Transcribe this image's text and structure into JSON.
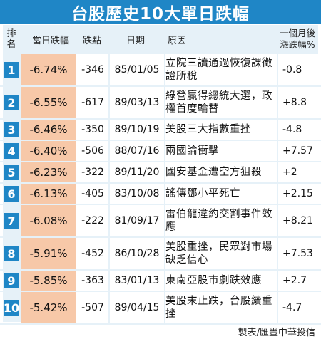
{
  "title": "台股歷史10大單日跌幅",
  "headers": {
    "rank_line1": "排",
    "rank_line2": "名",
    "pct": "當日跌幅",
    "points": "跌點",
    "date": "日期",
    "reason": "原因",
    "month_line1": "一個月後",
    "month_line2": "漲跌幅%"
  },
  "rows": [
    {
      "rank": "1",
      "pct": "-6.74%",
      "points": "-346",
      "date": "85/01/05",
      "reason": "立院三讀通過恢復課徵證所稅",
      "month": "-0.8",
      "tall": true
    },
    {
      "rank": "2",
      "pct": "-6.55%",
      "points": "-617",
      "date": "89/03/13",
      "reason": "綠營贏得總統大選，政權首度輪替",
      "month": "+8.8",
      "tall": true
    },
    {
      "rank": "3",
      "pct": "-6.46%",
      "points": "-350",
      "date": "89/10/19",
      "reason": "美股三大指數重挫",
      "month": "-4.8",
      "tall": false
    },
    {
      "rank": "4",
      "pct": "-6.40%",
      "points": "-506",
      "date": "88/07/16",
      "reason": "兩國論衝擊",
      "month": "+7.57",
      "tall": false
    },
    {
      "rank": "5",
      "pct": "-6.23%",
      "points": "-322",
      "date": "89/11/20",
      "reason": "國安基金遭空方狙殺",
      "month": "+2",
      "tall": false
    },
    {
      "rank": "6",
      "pct": "-6.13%",
      "points": "-405",
      "date": "83/10/08",
      "reason": "謠傳鄧小平死亡",
      "month": "+2.15",
      "tall": false
    },
    {
      "rank": "7",
      "pct": "-6.08%",
      "points": "-222",
      "date": "81/09/17",
      "reason": "雷伯龍違約交割事件效應",
      "month": "+8.21",
      "tall": true
    },
    {
      "rank": "8",
      "pct": "-5.91%",
      "points": "-452",
      "date": "86/10/28",
      "reason": "美股重挫，民眾對市場缺乏信心",
      "month": "+7.53",
      "tall": true
    },
    {
      "rank": "9",
      "pct": "-5.85%",
      "points": "-363",
      "date": "83/01/13",
      "reason": "東南亞股市劇跌效應",
      "month": "+2.7",
      "tall": false
    },
    {
      "rank": "10",
      "pct": "-5.42%",
      "points": "-507",
      "date": "89/04/15",
      "reason": "美股末止跌，台股續重挫",
      "month": "-4.7",
      "tall": true
    }
  ],
  "footer": "製表/匯豐中華投信",
  "colors": {
    "accent": "#1f86c6",
    "pct_bg": "#f7c8a8",
    "panel_bg": "#e6f1f8"
  }
}
